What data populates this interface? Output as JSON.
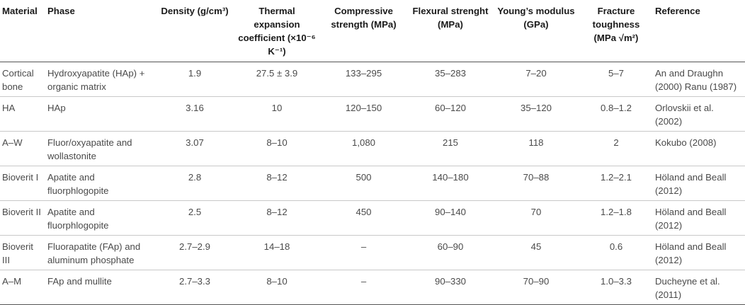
{
  "headers": {
    "material": "Material",
    "phase": "Phase",
    "density": "Density (g/cm³)",
    "thermal": "Thermal expansion coefficient (×10⁻⁶ K⁻¹)",
    "compressive": "Compressive strength (MPa)",
    "flexural": "Flexural strenght (MPa)",
    "youngs": "Young’s modulus (GPa)",
    "fracture": "Fracture toughness (MPa √m²)",
    "reference": "Reference"
  },
  "rows": [
    {
      "material": "Cortical bone",
      "phase": "Hydroxyapatite (HAp) + organic matrix",
      "density": "1.9",
      "thermal": "27.5 ± 3.9",
      "compressive": "133–295",
      "flexural": "35–283",
      "youngs": "7–20",
      "fracture": "5–7",
      "reference": "An and Draughn (2000) Ranu (1987)"
    },
    {
      "material": "HA",
      "phase": "HAp",
      "density": "3.16",
      "thermal": "10",
      "compressive": "120–150",
      "flexural": "60–120",
      "youngs": "35–120",
      "fracture": "0.8–1.2",
      "reference": "Orlovskii et al. (2002)"
    },
    {
      "material": "A–W",
      "phase": "Fluor/oxyapatite and wollastonite",
      "density": "3.07",
      "thermal": "8–10",
      "compressive": "1,080",
      "flexural": "215",
      "youngs": "118",
      "fracture": "2",
      "reference": "Kokubo (2008)"
    },
    {
      "material": "Bioverit I",
      "phase": "Apatite and fluorphlogopite",
      "density": "2.8",
      "thermal": "8–12",
      "compressive": "500",
      "flexural": "140–180",
      "youngs": "70–88",
      "fracture": "1.2–2.1",
      "reference": "Höland and Beall (2012)"
    },
    {
      "material": "Bioverit II",
      "phase": "Apatite and fluorphlogopite",
      "density": "2.5",
      "thermal": "8–12",
      "compressive": "450",
      "flexural": "90–140",
      "youngs": "70",
      "fracture": "1.2–1.8",
      "reference": "Höland and Beall (2012)"
    },
    {
      "material": "Bioverit III",
      "phase": "Fluorapatite (FAp) and aluminum phosphate",
      "density": "2.7–2.9",
      "thermal": "14–18",
      "compressive": "–",
      "flexural": "60–90",
      "youngs": "45",
      "fracture": "0.6",
      "reference": "Höland and Beall (2012)"
    },
    {
      "material": "A–M",
      "phase": "FAp and mullite",
      "density": "2.7–3.3",
      "thermal": "8–10",
      "compressive": "–",
      "flexural": "90–330",
      "youngs": "70–90",
      "fracture": "1.0–3.3",
      "reference": "Ducheyne et al. (2011)"
    }
  ]
}
